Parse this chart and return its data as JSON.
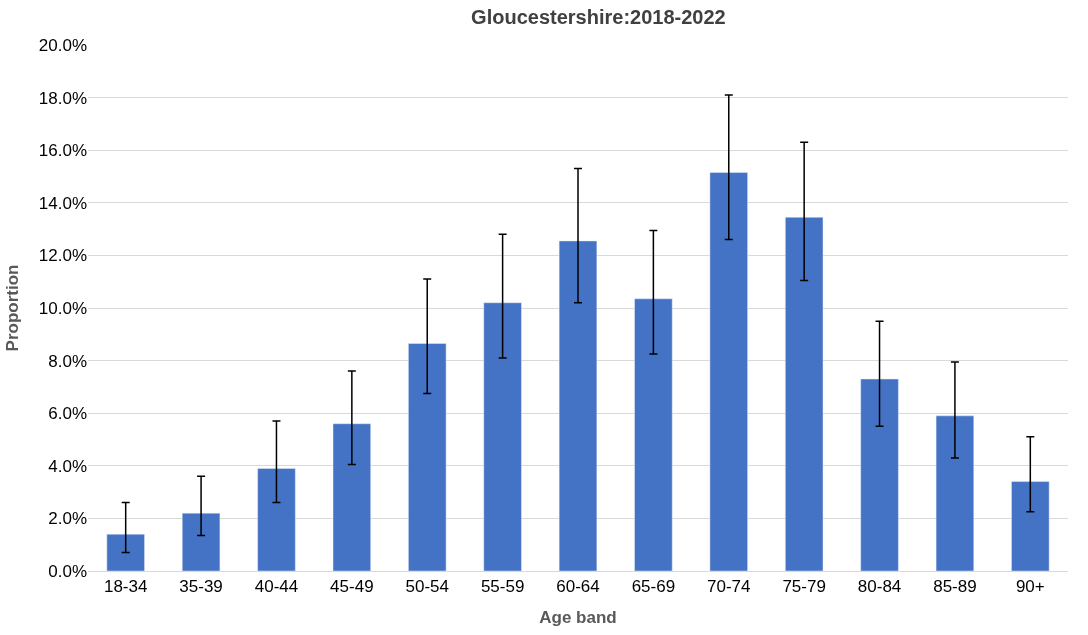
{
  "chart_data": {
    "type": "bar",
    "title": "Gloucestershire:2018-2022",
    "xlabel": "Age band",
    "ylabel": "Proportion",
    "categories": [
      "18-34",
      "35-39",
      "40-44",
      "45-49",
      "50-54",
      "55-59",
      "60-64",
      "65-69",
      "70-74",
      "75-79",
      "80-84",
      "85-89",
      "90+"
    ],
    "values": [
      1.4,
      2.2,
      3.9,
      5.6,
      8.65,
      10.2,
      12.55,
      10.35,
      15.15,
      13.45,
      7.3,
      5.9,
      3.4
    ],
    "errors": [
      [
        0.7,
        2.6
      ],
      [
        1.35,
        3.6
      ],
      [
        2.6,
        5.7
      ],
      [
        4.05,
        7.6
      ],
      [
        6.75,
        11.1
      ],
      [
        8.1,
        12.8
      ],
      [
        10.2,
        15.3
      ],
      [
        8.25,
        12.95
      ],
      [
        12.6,
        18.1
      ],
      [
        11.05,
        16.3
      ],
      [
        5.5,
        9.5
      ],
      [
        4.3,
        7.95
      ],
      [
        2.25,
        5.1
      ]
    ],
    "color": "#4472c4",
    "ylim": [
      0,
      20
    ],
    "yticks": [
      {
        "value": 0,
        "label": "0.0%"
      },
      {
        "value": 2,
        "label": "2.0%"
      },
      {
        "value": 4,
        "label": "4.0%"
      },
      {
        "value": 6,
        "label": "6.0%"
      },
      {
        "value": 8,
        "label": "8.0%"
      },
      {
        "value": 10,
        "label": "10.0%"
      },
      {
        "value": 12,
        "label": "12.0%"
      },
      {
        "value": 14,
        "label": "14.0%"
      },
      {
        "value": 16,
        "label": "16.0%"
      },
      {
        "value": 18,
        "label": "18.0%"
      },
      {
        "value": 20,
        "label": "20.0%"
      }
    ],
    "grid": "y"
  }
}
